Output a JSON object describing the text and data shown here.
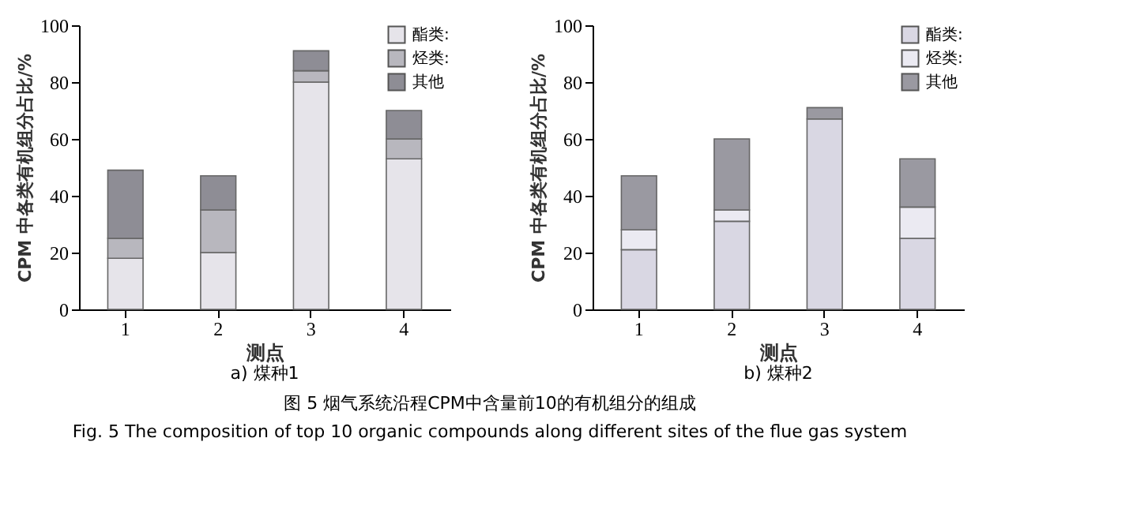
{
  "chart_data": [
    {
      "type": "bar",
      "title": "a) 煤种1",
      "xlabel": "测点",
      "ylabel": "CPM 中各类有机组分占比/%",
      "categories": [
        "1",
        "2",
        "3",
        "4"
      ],
      "stacked": true,
      "ylim": [
        0,
        100
      ],
      "yticks": [
        0,
        20,
        40,
        60,
        80,
        100
      ],
      "grid": false,
      "legend": "top right",
      "series": [
        {
          "name": "酯类:",
          "color": "#e6e4ea",
          "values": [
            18,
            20,
            80,
            53
          ]
        },
        {
          "name": "烃类:",
          "color": "#b8b7be",
          "values": [
            7,
            15,
            4,
            7
          ]
        },
        {
          "name": "其他",
          "color": "#8e8d95",
          "values": [
            24,
            12,
            7,
            10
          ]
        }
      ],
      "annotations": [
        "图 5   烟气系统沿程CPM中含量前10的有机组分的组成",
        "Fig. 5    The composition of top 10 organic compounds along different sites of the flue gas system"
      ]
    },
    {
      "type": "bar",
      "title": "b) 煤种2",
      "xlabel": "测点",
      "ylabel": "CPM 中各类有机组分占比/%",
      "categories": [
        "1",
        "2",
        "3",
        "4"
      ],
      "stacked": true,
      "ylim": [
        0,
        100
      ],
      "yticks": [
        0,
        20,
        40,
        60,
        80,
        100
      ],
      "grid": false,
      "legend": "top right",
      "series": [
        {
          "name": "酯类:",
          "color": "#d9d7e3",
          "values": [
            21,
            31,
            67,
            25
          ]
        },
        {
          "name": "烃类:",
          "color": "#ebeaf2",
          "values": [
            7,
            4,
            null,
            11
          ]
        },
        {
          "name": "其他",
          "color": "#9a99a1",
          "values": [
            19,
            25,
            4,
            17
          ]
        }
      ]
    }
  ]
}
